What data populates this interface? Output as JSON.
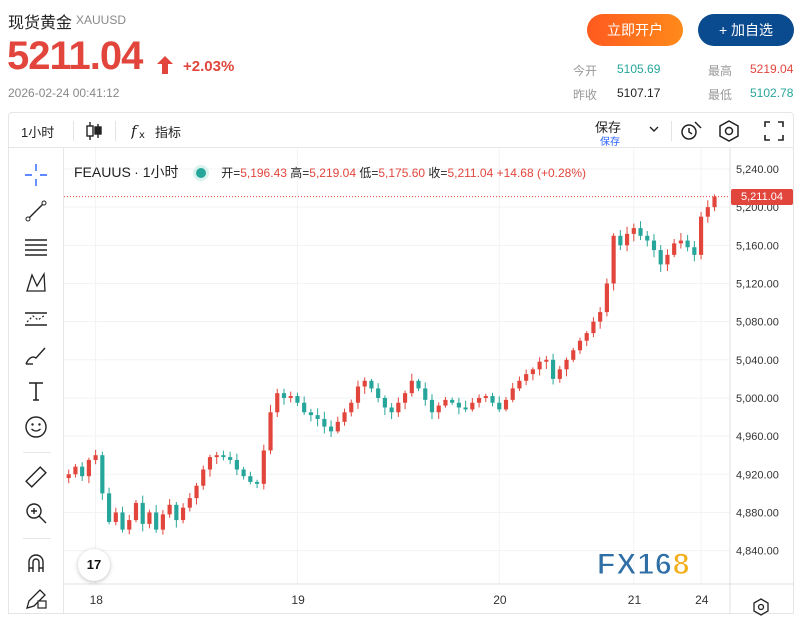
{
  "header": {
    "title": "现货黄金",
    "symbol": "XAUUSD",
    "price": "5211.04",
    "change_pct": "+2.03%",
    "timestamp": "2026-02-24 00:41:12",
    "open_account_label": "立即开户",
    "add_watchlist_label": "+ 加自选",
    "stats": {
      "today_open_label": "今开",
      "today_open": "5105.69",
      "high_label": "最高",
      "high": "5219.04",
      "prev_close_label": "昨收",
      "prev_close": "5107.17",
      "low_label": "最低",
      "low": "5102.78"
    },
    "colors": {
      "up": "#e2453c",
      "down": "#26a69a",
      "brand": "#0a4a8f",
      "accent": "#ff6a1a"
    }
  },
  "toolbar": {
    "interval": "1小时",
    "indicators_label": "指标",
    "save_label": "保存",
    "save_sub_label": "保存",
    "icons": [
      "candle-type-icon",
      "fx-indicator-icon",
      "chevron-down-icon",
      "camera-icon",
      "settings-icon",
      "fullscreen-icon"
    ]
  },
  "sidebar": {
    "tools": [
      "crosshair-icon",
      "trend-line-icon",
      "fib-icon",
      "pattern-icon",
      "forecast-icon",
      "brush-icon",
      "text-icon",
      "emoji-icon",
      "ruler-icon",
      "zoom-icon",
      "magnet-icon",
      "lock-pencil-icon"
    ]
  },
  "chart_data": {
    "type": "candlestick",
    "series_name": "FEAUUS",
    "interval": "1小时",
    "legend": {
      "open_label": "开=",
      "open": "5,196.43",
      "high_label": "高=",
      "high": "5,219.04",
      "low_label": "低=",
      "low": "5,175.60",
      "close_label": "收=",
      "close": "5,211.04",
      "change": "+14.68 (+0.28%)"
    },
    "last_price": "5,211.04",
    "y_ticks": [
      "5,240.00",
      "5,200.00",
      "5,160.00",
      "5,120.00",
      "5,080.00",
      "5,040.00",
      "5,000.00",
      "4,960.00",
      "4,920.00",
      "4,880.00",
      "4,840.00"
    ],
    "y_tick_values": [
      5240,
      5200,
      5160,
      5120,
      5080,
      5040,
      5000,
      4960,
      4920,
      4880,
      4840
    ],
    "ylim": [
      4805,
      5262
    ],
    "x_ticks": [
      "18",
      "19",
      "20",
      "21",
      "24"
    ],
    "close_path": [
      4920,
      4928,
      4918,
      4935,
      4940,
      4900,
      4870,
      4880,
      4862,
      4872,
      4890,
      4868,
      4880,
      4862,
      4878,
      4888,
      4872,
      4885,
      4895,
      4908,
      4925,
      4938,
      4940,
      4938,
      4935,
      4925,
      4918,
      4912,
      4910,
      4945,
      4985,
      5005,
      5000,
      5002,
      4995,
      4985,
      4982,
      4978,
      4970,
      4965,
      4975,
      4985,
      4995,
      5012,
      5018,
      5010,
      5000,
      4990,
      4985,
      4995,
      5005,
      5018,
      5010,
      4998,
      4985,
      4992,
      4998,
      4995,
      4990,
      4988,
      4995,
      5000,
      5002,
      4995,
      4988,
      4998,
      5010,
      5018,
      5025,
      5030,
      5038,
      5040,
      5020,
      5030,
      5040,
      5050,
      5060,
      5068,
      5080,
      5090,
      5120,
      5170,
      5160,
      5172,
      5178,
      5170,
      5165,
      5155,
      5140,
      5150,
      5162,
      5165,
      5158,
      5150,
      5190,
      5200,
      5211
    ],
    "colors": {
      "up": "#e2453c",
      "down": "#26a69a"
    }
  },
  "watermark": {
    "part1": "FX16",
    "part2": "8"
  },
  "tv_logo": "17"
}
